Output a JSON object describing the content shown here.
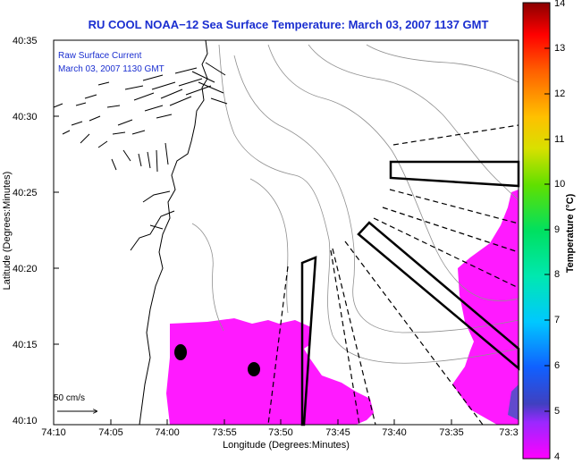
{
  "title": "RU COOL  NOAA−12  Sea Surface Temperature:  March 03, 2007 1137 GMT",
  "inset": {
    "line1": "Raw Surface Current",
    "line2": "March 03, 2007 1130 GMT"
  },
  "axes": {
    "ylabel": "Latitude (Degrees:Minutes)",
    "xlabel": "Longitude (Degrees:Minutes)",
    "yticks": [
      "40:35",
      "40:30",
      "40:25",
      "40:20",
      "40:15",
      "40:10"
    ],
    "xticks": [
      "74:10",
      "74:05",
      "74:00",
      "73:55",
      "73:50",
      "73:45",
      "73:40",
      "73:35",
      "73:3"
    ]
  },
  "colorbar": {
    "label": "Temperature (°C)",
    "ticks": [
      "14",
      "13",
      "12",
      "11",
      "10",
      "9",
      "8",
      "7",
      "6",
      "5",
      "4"
    ],
    "range": [
      4,
      14
    ]
  },
  "scale_label": "50 cm/s",
  "colors": {
    "title": "#1a2ed0",
    "sst_fill": "#ff1aff",
    "bathymetry": "#909090"
  }
}
